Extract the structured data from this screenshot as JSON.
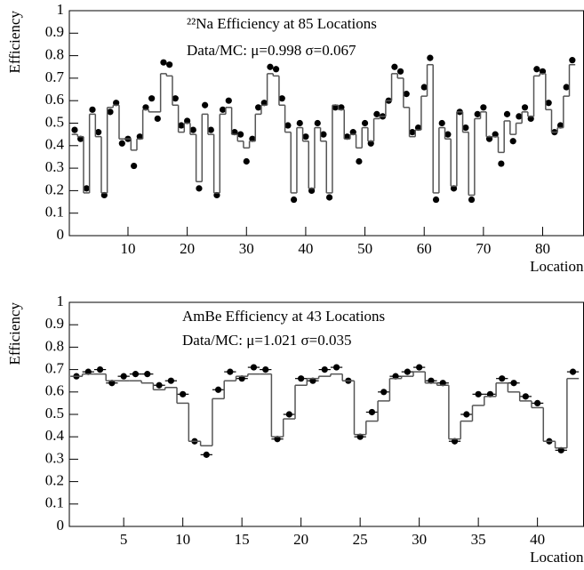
{
  "chart_data": [
    {
      "type": "scatter-step",
      "title": "²²Na Efficiency at 85 Locations",
      "annotation": "Data/MC: μ=0.998 σ=0.067",
      "x_label": "Location",
      "y_label": "Efficiency",
      "x": [
        1,
        2,
        3,
        4,
        5,
        6,
        7,
        8,
        9,
        10,
        11,
        12,
        13,
        14,
        15,
        16,
        17,
        18,
        19,
        20,
        21,
        22,
        23,
        24,
        25,
        26,
        27,
        28,
        29,
        30,
        31,
        32,
        33,
        34,
        35,
        36,
        37,
        38,
        39,
        40,
        41,
        42,
        43,
        44,
        45,
        46,
        47,
        48,
        49,
        50,
        51,
        52,
        53,
        54,
        55,
        56,
        57,
        58,
        59,
        60,
        61,
        62,
        63,
        64,
        65,
        66,
        67,
        68,
        69,
        70,
        71,
        72,
        73,
        74,
        75,
        76,
        77,
        78,
        79,
        80,
        81,
        82,
        83,
        84,
        85
      ],
      "series": [
        {
          "style": "points",
          "color": "#000000",
          "values": [
            0.47,
            0.43,
            0.21,
            0.56,
            0.46,
            0.18,
            0.55,
            0.59,
            0.41,
            0.43,
            0.31,
            0.44,
            0.57,
            0.61,
            0.52,
            0.77,
            0.76,
            0.61,
            0.49,
            0.51,
            0.47,
            0.21,
            0.58,
            0.47,
            0.18,
            0.56,
            0.6,
            0.46,
            0.45,
            0.33,
            0.43,
            0.57,
            0.59,
            0.75,
            0.74,
            0.61,
            0.49,
            0.16,
            0.5,
            0.44,
            0.2,
            0.5,
            0.45,
            0.17,
            0.57,
            0.57,
            0.44,
            0.46,
            0.33,
            0.5,
            0.41,
            0.54,
            0.53,
            0.6,
            0.75,
            0.73,
            0.63,
            0.46,
            0.48,
            0.66,
            0.79,
            0.16,
            0.5,
            0.45,
            0.21,
            0.55,
            0.48,
            0.16,
            0.54,
            0.57,
            0.43,
            0.45,
            0.32,
            0.54,
            0.42,
            0.53,
            0.57,
            0.52,
            0.74,
            0.73,
            0.59,
            0.46,
            0.49,
            0.66,
            0.78
          ]
        },
        {
          "style": "step",
          "color": "#555555",
          "values": [
            0.45,
            0.44,
            0.19,
            0.54,
            0.44,
            0.19,
            0.57,
            0.58,
            0.43,
            0.43,
            0.38,
            0.43,
            0.56,
            0.55,
            0.55,
            0.72,
            0.71,
            0.58,
            0.46,
            0.5,
            0.45,
            0.24,
            0.54,
            0.45,
            0.19,
            0.54,
            0.57,
            0.45,
            0.42,
            0.39,
            0.42,
            0.54,
            0.58,
            0.72,
            0.71,
            0.58,
            0.46,
            0.19,
            0.48,
            0.42,
            0.21,
            0.48,
            0.42,
            0.19,
            0.58,
            0.56,
            0.43,
            0.45,
            0.39,
            0.48,
            0.42,
            0.52,
            0.53,
            0.6,
            0.72,
            0.7,
            0.57,
            0.44,
            0.47,
            0.62,
            0.76,
            0.19,
            0.48,
            0.43,
            0.22,
            0.55,
            0.46,
            0.18,
            0.52,
            0.55,
            0.44,
            0.44,
            0.37,
            0.51,
            0.45,
            0.5,
            0.55,
            0.53,
            0.71,
            0.72,
            0.56,
            0.46,
            0.48,
            0.62,
            0.76
          ]
        }
      ],
      "xlim": [
        0.1,
        86.9
      ],
      "xticks": [
        10,
        20,
        30,
        40,
        50,
        60,
        70,
        80
      ],
      "ylim": [
        0,
        1
      ],
      "yticks": [
        0,
        0.1,
        0.2,
        0.3,
        0.4,
        0.5,
        0.6,
        0.7,
        0.8,
        0.9,
        1
      ],
      "error_bars": false
    },
    {
      "type": "scatter-step",
      "title": "AmBe Efficiency at 43 Locations",
      "annotation": "Data/MC: μ=1.021 σ=0.035",
      "x_label": "Location",
      "y_label": "Efficiency",
      "x": [
        1,
        2,
        3,
        4,
        5,
        6,
        7,
        8,
        9,
        10,
        11,
        12,
        13,
        14,
        15,
        16,
        17,
        18,
        19,
        20,
        21,
        22,
        23,
        24,
        25,
        26,
        27,
        28,
        29,
        30,
        31,
        32,
        33,
        34,
        35,
        36,
        37,
        38,
        39,
        40,
        41,
        42,
        43
      ],
      "series": [
        {
          "style": "points",
          "color": "#000000",
          "values": [
            0.67,
            0.69,
            0.7,
            0.64,
            0.67,
            0.68,
            0.68,
            0.63,
            0.65,
            0.59,
            0.38,
            0.32,
            0.61,
            0.69,
            0.66,
            0.71,
            0.7,
            0.39,
            0.5,
            0.66,
            0.65,
            0.7,
            0.71,
            0.65,
            0.4,
            0.51,
            0.6,
            0.67,
            0.69,
            0.71,
            0.65,
            0.64,
            0.38,
            0.5,
            0.59,
            0.59,
            0.66,
            0.64,
            0.58,
            0.55,
            0.38,
            0.34,
            0.69
          ]
        },
        {
          "style": "step",
          "color": "#555555",
          "values": [
            0.67,
            0.68,
            0.68,
            0.65,
            0.65,
            0.65,
            0.64,
            0.61,
            0.62,
            0.55,
            0.38,
            0.36,
            0.57,
            0.65,
            0.67,
            0.68,
            0.68,
            0.4,
            0.48,
            0.63,
            0.66,
            0.67,
            0.68,
            0.65,
            0.41,
            0.47,
            0.56,
            0.66,
            0.67,
            0.69,
            0.64,
            0.63,
            0.39,
            0.47,
            0.54,
            0.58,
            0.64,
            0.6,
            0.56,
            0.53,
            0.38,
            0.35,
            0.66
          ]
        }
      ],
      "xlim": [
        0.4,
        43.9
      ],
      "xticks": [
        5,
        10,
        15,
        20,
        25,
        30,
        35,
        40
      ],
      "ylim": [
        0,
        1
      ],
      "yticks": [
        0,
        0.1,
        0.2,
        0.3,
        0.4,
        0.5,
        0.6,
        0.7,
        0.8,
        0.9,
        1
      ],
      "error_bars": true
    }
  ]
}
